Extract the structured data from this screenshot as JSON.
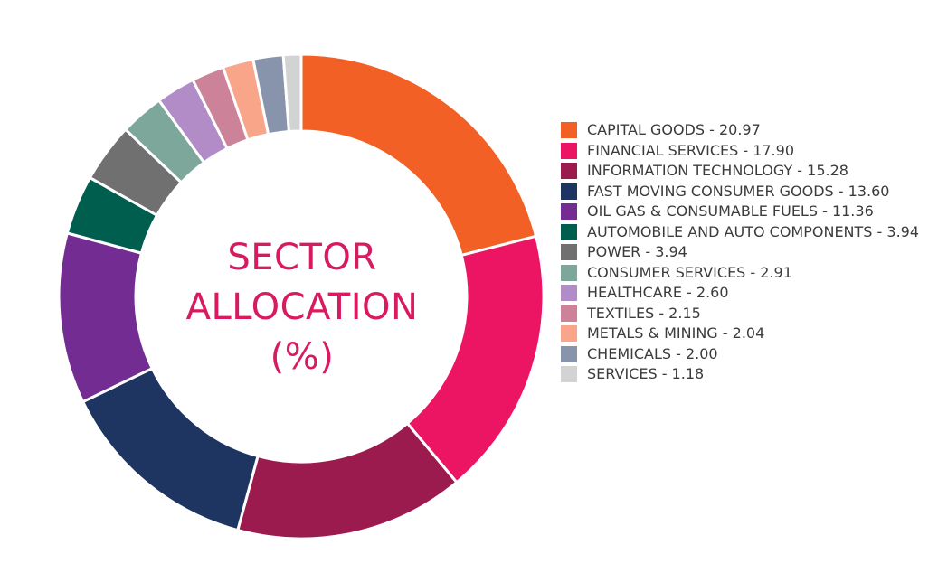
{
  "chart_data": {
    "type": "pie",
    "title_lines": [
      "SECTOR",
      "ALLOCATION",
      "(%)"
    ],
    "slices": [
      {
        "label": "CAPITAL GOODS - 20.97",
        "value": 20.97,
        "color": "#f26026"
      },
      {
        "label": "FINANCIAL SERVICES - 17.90",
        "value": 17.9,
        "color": "#ec1563"
      },
      {
        "label": "INFORMATION TECHNOLOGY - 15.28",
        "value": 15.28,
        "color": "#9c1b4f"
      },
      {
        "label": "FAST MOVING CONSUMER GOODS - 13.60",
        "value": 13.6,
        "color": "#1d3560"
      },
      {
        "label": "OIL GAS & CONSUMABLE FUELS - 11.36",
        "value": 11.36,
        "color": "#722c92"
      },
      {
        "label": "AUTOMOBILE AND AUTO COMPONENTS - 3.94",
        "value": 3.94,
        "color": "#005e4f"
      },
      {
        "label": "POWER - 3.94",
        "value": 3.94,
        "color": "#707070"
      },
      {
        "label": "CONSUMER SERVICES - 2.91",
        "value": 2.91,
        "color": "#7da79a"
      },
      {
        "label": "HEALTHCARE - 2.60",
        "value": 2.6,
        "color": "#b28cc6"
      },
      {
        "label": "TEXTILES - 2.15",
        "value": 2.15,
        "color": "#cc8399"
      },
      {
        "label": "METALS & MINING - 2.04",
        "value": 2.04,
        "color": "#f8a58a"
      },
      {
        "label": "CHEMICALS - 2.00",
        "value": 2.0,
        "color": "#8794ac"
      },
      {
        "label": "SERVICES - 1.18",
        "value": 1.18,
        "color": "#d3d3d3"
      }
    ],
    "legend_position": "right"
  }
}
